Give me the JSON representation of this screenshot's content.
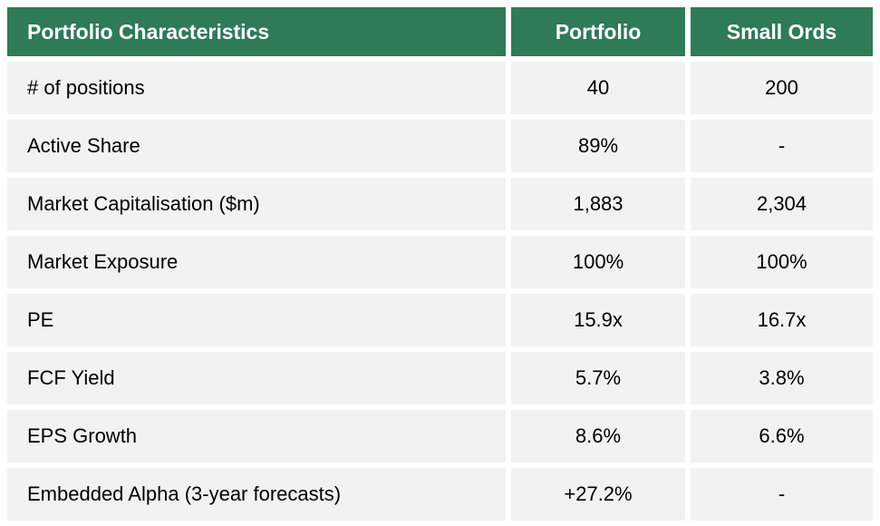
{
  "colors": {
    "header_bg": "#2F7A57",
    "header_text": "#FFFFFF",
    "row_bg": "#F2F2F2",
    "body_text": "#000000",
    "gap": "#FFFFFF"
  },
  "chart_data": {
    "type": "table",
    "title": "Portfolio Characteristics",
    "columns": [
      "Portfolio Characteristics",
      "Portfolio",
      "Small Ords"
    ],
    "rows": [
      [
        "# of positions",
        "40",
        "200"
      ],
      [
        "Active Share",
        "89%",
        "-"
      ],
      [
        "Market Capitalisation ($m)",
        "1,883",
        "2,304"
      ],
      [
        "Market Exposure",
        "100%",
        "100%"
      ],
      [
        "PE",
        "15.9x",
        "16.7x"
      ],
      [
        "FCF Yield",
        "5.7%",
        "3.8%"
      ],
      [
        "EPS Growth",
        "8.6%",
        "6.6%"
      ],
      [
        "Embedded Alpha (3-year forecasts)",
        "+27.2%",
        "-"
      ]
    ]
  }
}
